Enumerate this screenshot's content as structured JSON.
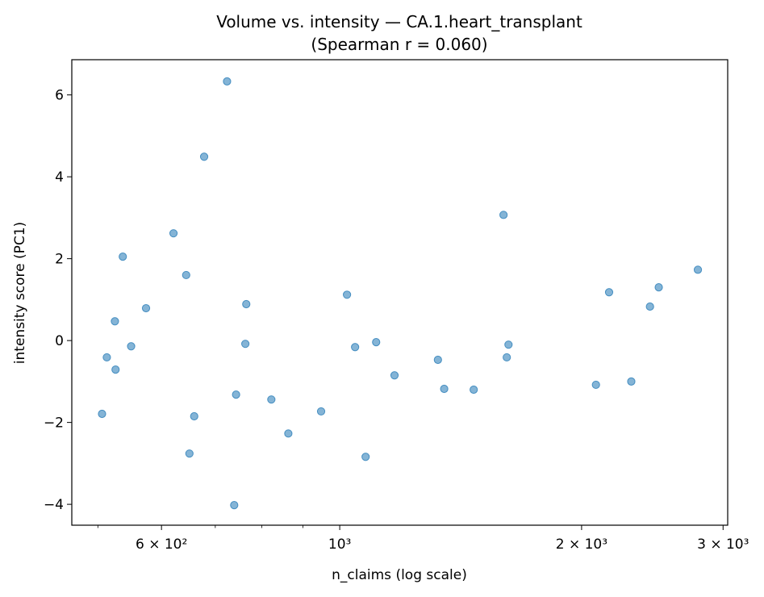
{
  "chart_data": {
    "type": "scatter",
    "title": "Volume vs. intensity — CA.1.heart_transplant",
    "subtitle": "(Spearman r = 0.060)",
    "xlabel": "n_claims (log scale)",
    "ylabel": "intensity score (PC1)",
    "x_scale": "log",
    "xlim": [
      464,
      3040
    ],
    "ylim": [
      -4.51,
      6.86
    ],
    "grid": false,
    "color": "#1f77b4",
    "x_ticks": [
      {
        "value": 600,
        "label": "6 × 10²"
      },
      {
        "value": 1000,
        "label": "10³"
      },
      {
        "value": 2000,
        "label": "2 × 10³"
      },
      {
        "value": 3000,
        "label": "3 × 10³"
      }
    ],
    "x_minor_ticks": [
      500,
      700,
      800,
      900
    ],
    "y_ticks": [
      {
        "value": 6,
        "label": "6"
      },
      {
        "value": 4,
        "label": "4"
      },
      {
        "value": 2,
        "label": "2"
      },
      {
        "value": 0,
        "label": "0"
      },
      {
        "value": -2,
        "label": "−2"
      },
      {
        "value": -4,
        "label": "−4"
      }
    ],
    "points": [
      [
        506,
        -1.79
      ],
      [
        513,
        -0.41
      ],
      [
        525,
        0.47
      ],
      [
        526,
        -0.71
      ],
      [
        537,
        2.05
      ],
      [
        550,
        -0.14
      ],
      [
        574,
        0.79
      ],
      [
        621,
        2.62
      ],
      [
        644,
        1.6
      ],
      [
        650,
        -2.76
      ],
      [
        659,
        -1.85
      ],
      [
        678,
        4.49
      ],
      [
        724,
        6.33
      ],
      [
        739,
        -4.02
      ],
      [
        743,
        -1.32
      ],
      [
        763,
        -0.08
      ],
      [
        765,
        0.89
      ],
      [
        822,
        -1.44
      ],
      [
        863,
        -2.27
      ],
      [
        948,
        -1.73
      ],
      [
        1021,
        1.12
      ],
      [
        1045,
        -0.16
      ],
      [
        1077,
        -2.84
      ],
      [
        1110,
        -0.04
      ],
      [
        1170,
        -0.85
      ],
      [
        1325,
        -0.47
      ],
      [
        1349,
        -1.18
      ],
      [
        1468,
        -1.2
      ],
      [
        1599,
        3.07
      ],
      [
        1614,
        -0.41
      ],
      [
        1622,
        -0.1
      ],
      [
        2084,
        -1.08
      ],
      [
        2164,
        1.18
      ],
      [
        2306,
        -1.0
      ],
      [
        2433,
        0.83
      ],
      [
        2495,
        1.3
      ],
      [
        2791,
        1.73
      ]
    ]
  }
}
